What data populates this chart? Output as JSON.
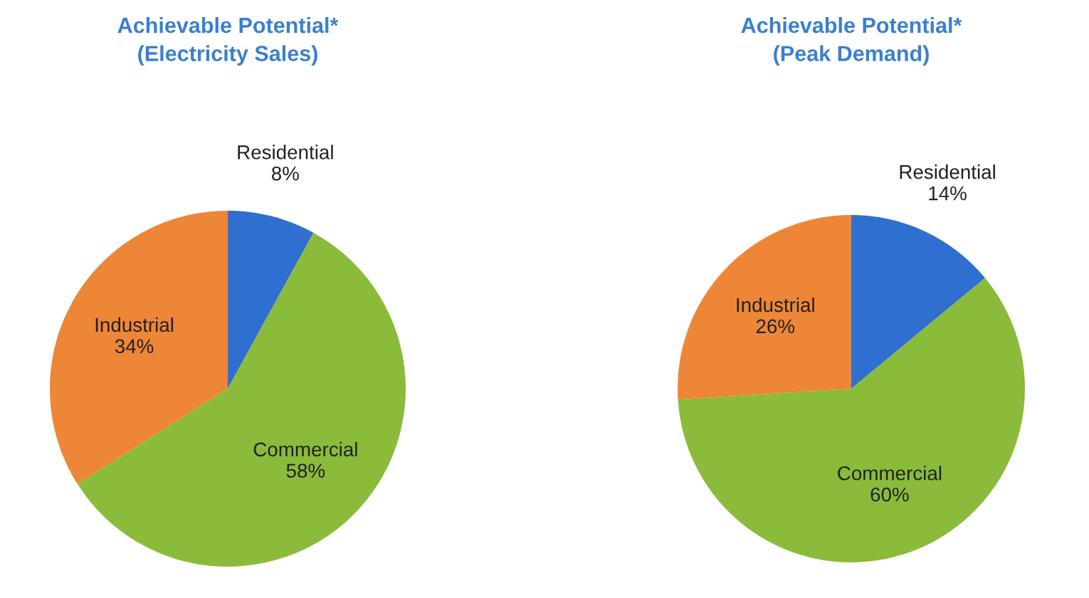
{
  "chart_data": [
    {
      "type": "pie",
      "title": "Achievable Potential*\n(Electricity Sales)",
      "categories": [
        "Residential",
        "Commercial",
        "Industrial"
      ],
      "values": [
        8,
        58,
        34
      ],
      "value_labels": [
        "8%",
        "58%",
        "34%"
      ],
      "colors": [
        "#2f6fcf",
        "#8bbb3a",
        "#ee8638"
      ]
    },
    {
      "type": "pie",
      "title": "Achievable Potential*\n(Peak Demand)",
      "categories": [
        "Residential",
        "Commercial",
        "Industrial"
      ],
      "values": [
        14,
        60,
        26
      ],
      "value_labels": [
        "14%",
        "60%",
        "26%"
      ],
      "colors": [
        "#2f6fcf",
        "#8bbb3a",
        "#ee8638"
      ]
    }
  ]
}
